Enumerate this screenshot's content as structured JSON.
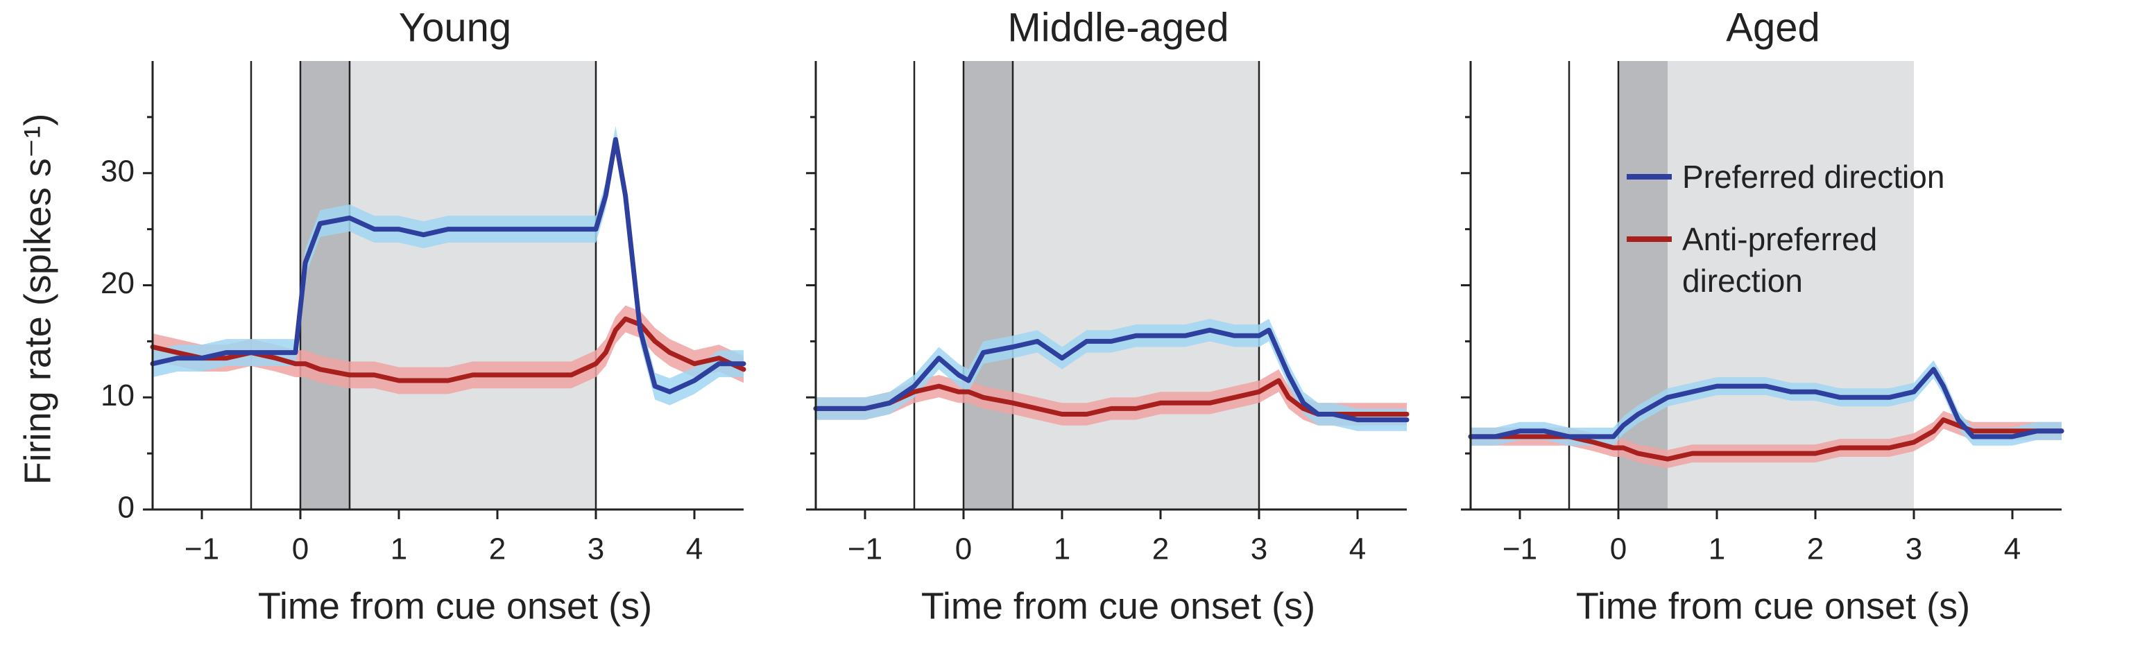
{
  "chart_data": [
    {
      "type": "line",
      "title": "Young",
      "xlabel": "Time from cue onset (s)",
      "ylabel": "Firing rate (spikes s⁻¹)",
      "xlim": [
        -1.5,
        4.5
      ],
      "xticks": [
        {
          "value": -1,
          "label": "−1"
        },
        0,
        1,
        2,
        3,
        4
      ],
      "ylim": [
        0,
        40
      ],
      "yticks": [
        0,
        10,
        20,
        30
      ],
      "minor_yticks": [
        5,
        15,
        25,
        35
      ],
      "ytick_labels": true,
      "event_lines": [
        -0.5,
        0,
        0.5,
        3
      ],
      "event_color": "#222222",
      "shaded": [
        {
          "range": [
            0,
            0.5
          ],
          "color": "#b8b9bc"
        },
        {
          "range": [
            0.5,
            3
          ],
          "color": "#e0e1e3"
        }
      ],
      "x": [
        -1.5,
        -1.25,
        -1,
        -0.75,
        -0.5,
        -0.25,
        -0.05,
        0.05,
        0.2,
        0.5,
        0.75,
        1,
        1.25,
        1.5,
        1.75,
        2,
        2.25,
        2.5,
        2.75,
        3,
        3.1,
        3.2,
        3.3,
        3.45,
        3.6,
        3.75,
        4,
        4.25,
        4.5
      ],
      "legend": false,
      "series": [
        {
          "color": "#a8201e",
          "band_color": "#f0a3a3",
          "error": 1.2,
          "values": [
            14.5,
            14,
            13.5,
            13.5,
            14,
            13.5,
            13,
            13,
            12.5,
            12,
            12,
            11.5,
            11.5,
            11.5,
            12,
            12,
            12,
            12,
            12,
            13,
            14,
            16,
            17,
            16.5,
            15,
            14,
            13,
            13.5,
            12.5
          ]
        },
        {
          "color": "#2e3f9e",
          "band_color": "#9fd6f2",
          "error": 1.2,
          "values": [
            13,
            13.5,
            13.5,
            14,
            14,
            14,
            14,
            22,
            25.5,
            26,
            25,
            25,
            24.5,
            25,
            25,
            25,
            25,
            25,
            25,
            25,
            28,
            33,
            28,
            16,
            11,
            10.5,
            11.5,
            13,
            13
          ]
        }
      ]
    },
    {
      "type": "line",
      "title": "Middle-aged",
      "xlabel": "Time from cue onset (s)",
      "xlim": [
        -1.5,
        4.5
      ],
      "xticks": [
        {
          "value": -1,
          "label": "−1"
        },
        0,
        1,
        2,
        3,
        4
      ],
      "ylim": [
        0,
        40
      ],
      "yticks": [
        0,
        10,
        20,
        30
      ],
      "minor_yticks": [
        5,
        15,
        25,
        35
      ],
      "ytick_labels": false,
      "event_lines": [
        -0.5,
        0,
        0.5,
        3
      ],
      "event_color": "#222222",
      "shaded": [
        {
          "range": [
            0,
            0.5
          ],
          "color": "#b8b9bc"
        },
        {
          "range": [
            0.5,
            3
          ],
          "color": "#e0e1e3"
        }
      ],
      "x": [
        -1.5,
        -1.25,
        -1,
        -0.75,
        -0.5,
        -0.25,
        -0.05,
        0.05,
        0.2,
        0.5,
        0.75,
        1,
        1.25,
        1.5,
        1.75,
        2,
        2.25,
        2.5,
        2.75,
        3,
        3.1,
        3.2,
        3.3,
        3.45,
        3.6,
        3.75,
        4,
        4.25,
        4.5
      ],
      "legend": false,
      "series": [
        {
          "color": "#a8201e",
          "band_color": "#f0a3a3",
          "error": 1.0,
          "values": [
            9,
            9,
            9,
            9.5,
            10.5,
            11,
            10.5,
            10.5,
            10,
            9.5,
            9,
            8.5,
            8.5,
            9,
            9,
            9.5,
            9.5,
            9.5,
            10,
            10.5,
            11,
            11.5,
            10,
            9,
            8.5,
            8.5,
            8.5,
            8.5,
            8.5
          ]
        },
        {
          "color": "#2e3f9e",
          "band_color": "#9fd6f2",
          "error": 1.0,
          "values": [
            9,
            9,
            9,
            9.5,
            11,
            13.5,
            12,
            11.5,
            14,
            14.5,
            15,
            13.5,
            15,
            15,
            15.5,
            15.5,
            15.5,
            16,
            15.5,
            15.5,
            16,
            14,
            12,
            9.5,
            8.5,
            8.5,
            8,
            8,
            8
          ]
        }
      ]
    },
    {
      "type": "line",
      "title": "Aged",
      "xlabel": "Time from cue onset (s)",
      "xlim": [
        -1.5,
        4.5
      ],
      "xticks": [
        {
          "value": -1,
          "label": "−1"
        },
        0,
        1,
        2,
        3,
        4
      ],
      "ylim": [
        0,
        40
      ],
      "yticks": [
        0,
        10,
        20,
        30
      ],
      "minor_yticks": [
        5,
        15,
        25,
        35
      ],
      "ytick_labels": false,
      "event_lines": [
        -0.5,
        0
      ],
      "event_color": "#222222",
      "shaded": [
        {
          "range": [
            0,
            0.5
          ],
          "color": "#b8b9bc"
        },
        {
          "range": [
            0.5,
            3
          ],
          "color": "#e0e1e3"
        }
      ],
      "x": [
        -1.5,
        -1.25,
        -1,
        -0.75,
        -0.5,
        -0.25,
        -0.05,
        0.05,
        0.2,
        0.5,
        0.75,
        1,
        1.25,
        1.5,
        1.75,
        2,
        2.25,
        2.5,
        2.75,
        3,
        3.1,
        3.2,
        3.3,
        3.45,
        3.6,
        3.75,
        4,
        4.25,
        4.5
      ],
      "legend": true,
      "series": [
        {
          "name": "Anti-preferred direction",
          "color": "#a8201e",
          "band_color": "#f0a3a3",
          "error": 0.8,
          "values": [
            6.5,
            6.5,
            6.5,
            6.5,
            6.5,
            6,
            5.5,
            5.5,
            5,
            4.5,
            5,
            5,
            5,
            5,
            5,
            5,
            5.5,
            5.5,
            5.5,
            6,
            6.5,
            7,
            8,
            7.5,
            7,
            7,
            7,
            7,
            7
          ]
        },
        {
          "name": "Preferred direction",
          "color": "#2e3f9e",
          "band_color": "#9fd6f2",
          "error": 0.8,
          "values": [
            6.5,
            6.5,
            7,
            7,
            6.5,
            6.5,
            6.5,
            7.5,
            8.5,
            10,
            10.5,
            11,
            11,
            11,
            10.5,
            10.5,
            10,
            10,
            10,
            10.5,
            11.5,
            12.5,
            11,
            8,
            6.5,
            6.5,
            6.5,
            7,
            7
          ]
        }
      ]
    }
  ]
}
